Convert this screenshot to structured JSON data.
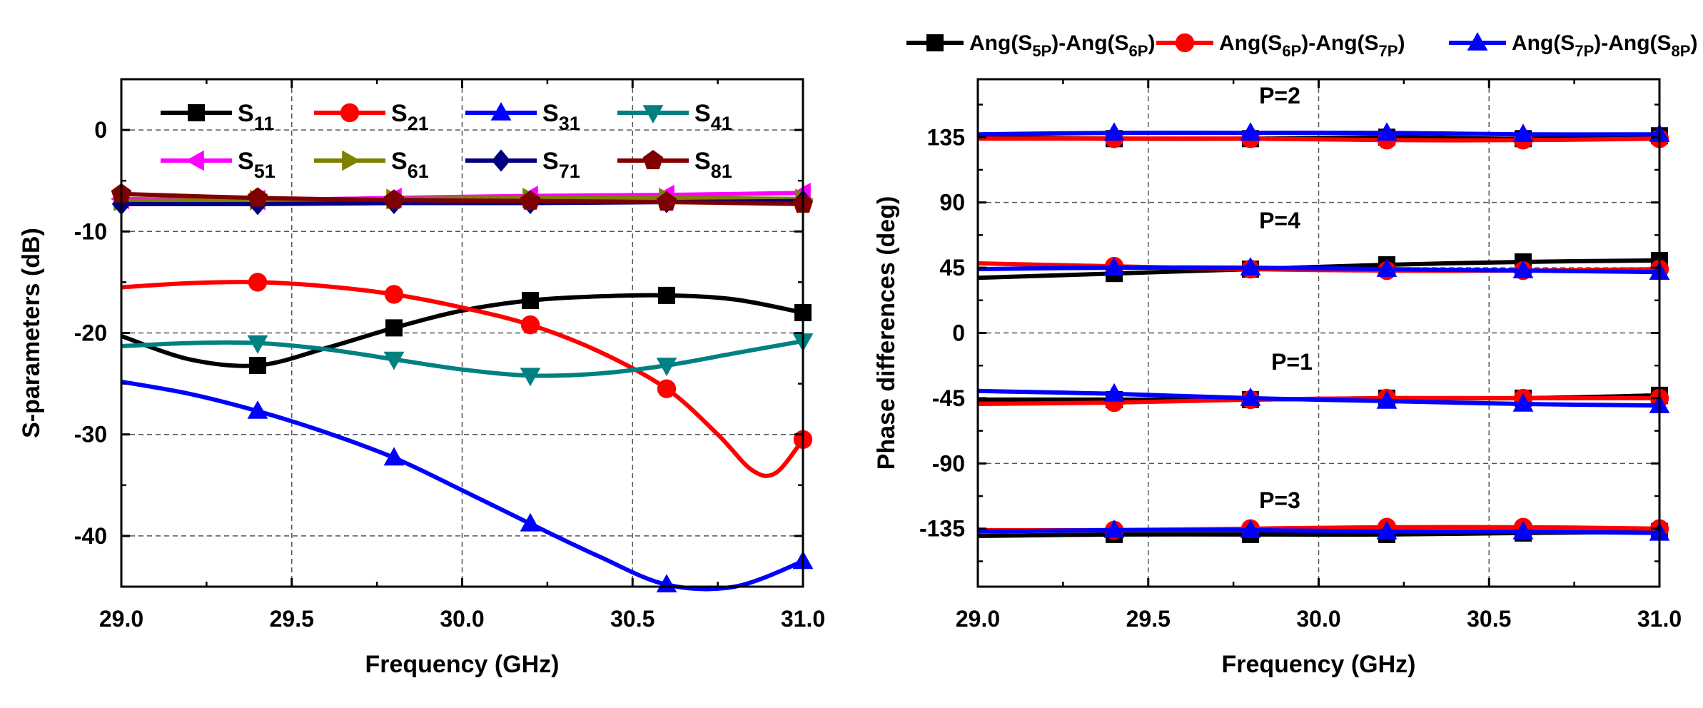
{
  "chart_data": [
    {
      "type": "line",
      "xlabel": "Frequency (GHz)",
      "ylabel": "S-parameters (dB)",
      "xlim": [
        29.0,
        31.0
      ],
      "ylim": [
        -45,
        5
      ],
      "xticks": [
        "29.0",
        "29.5",
        "30.0",
        "30.5",
        "31.0"
      ],
      "yticks": [
        "0",
        "-10",
        "-20",
        "-30",
        "-40"
      ],
      "grid": true,
      "legend_position": "top",
      "series": [
        {
          "name": "S11",
          "name_main": "S",
          "name_sub": "11",
          "color": "#000000",
          "marker": "square",
          "x": [
            29.0,
            29.2,
            29.4,
            29.6,
            29.8,
            30.0,
            30.2,
            30.4,
            30.6,
            30.8,
            31.0
          ],
          "y": [
            -20.3,
            -22.6,
            -23.2,
            -21.5,
            -19.5,
            -17.8,
            -16.8,
            -16.4,
            -16.3,
            -16.7,
            -18.0
          ]
        },
        {
          "name": "S21",
          "name_main": "S",
          "name_sub": "21",
          "color": "#ff0000",
          "marker": "circle",
          "x": [
            29.0,
            29.2,
            29.4,
            29.6,
            29.8,
            30.0,
            30.2,
            30.4,
            30.6,
            30.75,
            30.85,
            30.92,
            31.0
          ],
          "y": [
            -15.5,
            -15.1,
            -15.0,
            -15.4,
            -16.2,
            -17.5,
            -19.2,
            -21.8,
            -25.5,
            -30.0,
            -33.5,
            -33.8,
            -30.5
          ]
        },
        {
          "name": "S31",
          "name_main": "S",
          "name_sub": "31",
          "color": "#0000ff",
          "marker": "triangle-up",
          "x": [
            29.0,
            29.2,
            29.4,
            29.6,
            29.8,
            30.0,
            30.2,
            30.4,
            30.6,
            30.8,
            31.0
          ],
          "y": [
            -24.8,
            -26.0,
            -27.7,
            -29.8,
            -32.3,
            -35.5,
            -38.8,
            -42.0,
            -44.8,
            -45.0,
            -42.5
          ]
        },
        {
          "name": "S41",
          "name_main": "S",
          "name_sub": "41",
          "color": "#008080",
          "marker": "triangle-down",
          "x": [
            29.0,
            29.2,
            29.4,
            29.6,
            29.8,
            30.0,
            30.2,
            30.4,
            30.6,
            30.8,
            31.0
          ],
          "y": [
            -21.3,
            -21.0,
            -21.0,
            -21.6,
            -22.6,
            -23.6,
            -24.2,
            -24.0,
            -23.2,
            -22.0,
            -20.8
          ]
        },
        {
          "name": "S51",
          "name_main": "S",
          "name_sub": "51",
          "color": "#ff00ff",
          "marker": "triangle-left",
          "x": [
            29.0,
            29.4,
            29.8,
            30.2,
            30.6,
            31.0
          ],
          "y": [
            -6.8,
            -6.9,
            -6.7,
            -6.5,
            -6.4,
            -6.2
          ]
        },
        {
          "name": "S61",
          "name_main": "S",
          "name_sub": "61",
          "color": "#808000",
          "marker": "triangle-right",
          "x": [
            29.0,
            29.4,
            29.8,
            30.2,
            30.6,
            31.0
          ],
          "y": [
            -7.0,
            -6.9,
            -6.8,
            -6.7,
            -6.7,
            -6.8
          ]
        },
        {
          "name": "S71",
          "name_main": "S",
          "name_sub": "71",
          "color": "#000080",
          "marker": "diamond",
          "x": [
            29.0,
            29.4,
            29.8,
            30.2,
            30.6,
            31.0
          ],
          "y": [
            -7.3,
            -7.3,
            -7.2,
            -7.2,
            -7.1,
            -7.0
          ]
        },
        {
          "name": "S81",
          "name_main": "S",
          "name_sub": "81",
          "color": "#800000",
          "marker": "pentagon",
          "x": [
            29.0,
            29.4,
            29.8,
            30.2,
            30.6,
            31.0
          ],
          "y": [
            -6.3,
            -6.7,
            -6.9,
            -7.0,
            -7.1,
            -7.3
          ]
        }
      ]
    },
    {
      "type": "line",
      "xlabel": "Frequency (GHz)",
      "ylabel": "Phase differences (deg)",
      "xlim": [
        29.0,
        31.0
      ],
      "ylim": [
        -175,
        175
      ],
      "xticks": [
        "29.0",
        "29.5",
        "30.0",
        "30.5",
        "31.0"
      ],
      "yticks": [
        "135",
        "90",
        "45",
        "0",
        "-45",
        "-90",
        "-135"
      ],
      "grid": true,
      "legend_position": "top (outside)",
      "annotations": [
        "P=2",
        "P=4",
        "P=1",
        "P=3"
      ],
      "series": [
        {
          "name": "Ang(S5P)-Ang(S6P)",
          "color": "#000000",
          "marker": "square",
          "groups": [
            {
              "x": [
                29.0,
                29.4,
                29.8,
                30.2,
                30.6,
                31.0
              ],
              "y": [
                135,
                134,
                134,
                135,
                134,
                136
              ]
            },
            {
              "x": [
                29.0,
                29.4,
                29.8,
                30.2,
                30.6,
                31.0
              ],
              "y": [
                38,
                41,
                44,
                47,
                49,
                50
              ]
            },
            {
              "x": [
                29.0,
                29.4,
                29.8,
                30.2,
                30.6,
                31.0
              ],
              "y": [
                -46,
                -46,
                -46,
                -45,
                -45,
                -43
              ]
            },
            {
              "x": [
                29.0,
                29.4,
                29.8,
                30.2,
                30.6,
                31.0
              ],
              "y": [
                -140,
                -139,
                -139,
                -139,
                -138,
                -137
              ]
            }
          ]
        },
        {
          "name": "Ang(S6P)-Ang(S7P)",
          "color": "#ff0000",
          "marker": "circle",
          "groups": [
            {
              "x": [
                29.0,
                29.4,
                29.8,
                30.2,
                30.6,
                31.0
              ],
              "y": [
                134,
                134,
                134,
                133,
                133,
                134
              ]
            },
            {
              "x": [
                29.0,
                29.4,
                29.8,
                30.2,
                30.6,
                31.0
              ],
              "y": [
                48,
                46,
                44,
                43,
                43,
                44
              ]
            },
            {
              "x": [
                29.0,
                29.4,
                29.8,
                30.2,
                30.6,
                31.0
              ],
              "y": [
                -49,
                -48,
                -46,
                -45,
                -45,
                -45
              ]
            },
            {
              "x": [
                29.0,
                29.4,
                29.8,
                30.2,
                30.6,
                31.0
              ],
              "y": [
                -136,
                -136,
                -135,
                -134,
                -134,
                -135
              ]
            }
          ]
        },
        {
          "name": "Ang(S7P)-Ang(S8P)",
          "color": "#0000ff",
          "marker": "triangle-up",
          "groups": [
            {
              "x": [
                29.0,
                29.4,
                29.8,
                30.2,
                30.6,
                31.0
              ],
              "y": [
                137,
                138,
                138,
                138,
                137,
                137
              ]
            },
            {
              "x": [
                29.0,
                29.4,
                29.8,
                30.2,
                30.6,
                31.0
              ],
              "y": [
                44,
                45,
                45,
                44,
                43,
                42
              ]
            },
            {
              "x": [
                29.0,
                29.4,
                29.8,
                30.2,
                30.6,
                31.0
              ],
              "y": [
                -40,
                -42,
                -45,
                -47,
                -49,
                -50
              ]
            },
            {
              "x": [
                29.0,
                29.4,
                29.8,
                30.2,
                30.6,
                31.0
              ],
              "y": [
                -137,
                -136,
                -136,
                -137,
                -137,
                -138
              ]
            }
          ]
        }
      ],
      "legend_labels": [
        {
          "parts": [
            [
              "Ang(S",
              "n"
            ],
            [
              "5P",
              "s"
            ],
            [
              ")-Ang(S",
              "n"
            ],
            [
              "6P",
              "s"
            ],
            [
              ")",
              "n"
            ]
          ]
        },
        {
          "parts": [
            [
              "Ang(S",
              "n"
            ],
            [
              "6P",
              "s"
            ],
            [
              ")-Ang(S",
              "n"
            ],
            [
              "7P",
              "s"
            ],
            [
              ")",
              "n"
            ]
          ]
        },
        {
          "parts": [
            [
              "Ang(S",
              "n"
            ],
            [
              "7P",
              "s"
            ],
            [
              ")-Ang(S",
              "n"
            ],
            [
              "8P",
              "s"
            ],
            [
              ")",
              "n"
            ]
          ]
        }
      ]
    }
  ]
}
